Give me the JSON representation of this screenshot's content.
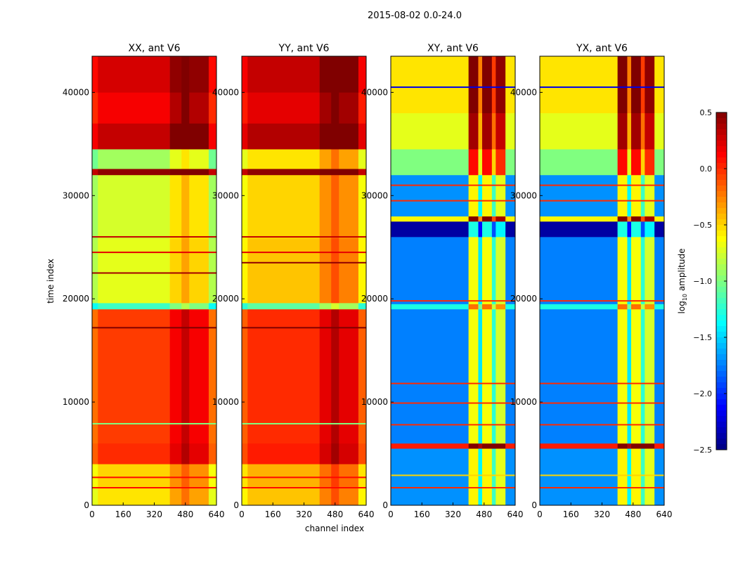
{
  "chart_data": {
    "type": "heatmap",
    "title": "2015-08-02 0.0-24.0",
    "xlabel": "channel index",
    "ylabel": "time index",
    "xlim": [
      0,
      640
    ],
    "ylim": [
      0,
      43500
    ],
    "xticks": [
      "0",
      "160",
      "320",
      "480",
      "640"
    ],
    "xtick_values": [
      0,
      160,
      320,
      480,
      640
    ],
    "yticks": [
      "0",
      "10000",
      "20000",
      "30000",
      "40000"
    ],
    "ytick_values": [
      0,
      10000,
      20000,
      30000,
      40000
    ],
    "colorbar": {
      "label_main": "log",
      "label_sub": "10",
      "label_rest": " amplitude",
      "range": [
        -2.5,
        0.5
      ],
      "ticks": [
        "0.5",
        "0.0",
        "−0.5",
        "−1.0",
        "−1.5",
        "−2.0",
        "−2.5"
      ],
      "tick_values": [
        0.5,
        0.0,
        -0.5,
        -1.0,
        -1.5,
        -2.0,
        -2.5
      ],
      "colormap": "jet"
    },
    "panels": [
      {
        "title": "XX, ant V6",
        "bands": [
          [
            0,
            1800,
            -0.55
          ],
          [
            1800,
            4000,
            -0.5
          ],
          [
            4000,
            6000,
            0.0
          ],
          [
            6000,
            19000,
            -0.05
          ],
          [
            19000,
            19600,
            -1.2
          ],
          [
            19600,
            25800,
            -0.7
          ],
          [
            25800,
            32000,
            -0.75
          ],
          [
            32000,
            32600,
            0.45
          ],
          [
            32600,
            34500,
            -0.9
          ],
          [
            34500,
            37000,
            0.3
          ],
          [
            37000,
            40000,
            0.15
          ],
          [
            40000,
            43500,
            0.25
          ]
        ],
        "channel_deltas": [
          [
            0,
            30,
            -0.15
          ],
          [
            30,
            400,
            0
          ],
          [
            400,
            460,
            0.2
          ],
          [
            460,
            500,
            0.35
          ],
          [
            500,
            600,
            0.2
          ],
          [
            600,
            640,
            -0.15
          ]
        ],
        "lines": [
          [
            1700,
            0.1
          ],
          [
            2700,
            0.1
          ],
          [
            7900,
            -1.0
          ],
          [
            17200,
            0.5
          ],
          [
            24500,
            0.2
          ],
          [
            26000,
            0.3
          ],
          [
            22500,
            0.4
          ]
        ]
      },
      {
        "title": "YY, ant V6",
        "bands": [
          [
            0,
            1800,
            -0.45
          ],
          [
            1800,
            4000,
            -0.4
          ],
          [
            4000,
            6000,
            0.05
          ],
          [
            6000,
            19000,
            0.0
          ],
          [
            19000,
            19600,
            -1.1
          ],
          [
            19600,
            25800,
            -0.45
          ],
          [
            25800,
            32000,
            -0.5
          ],
          [
            32000,
            32600,
            0.45
          ],
          [
            32600,
            34500,
            -0.55
          ],
          [
            34500,
            37000,
            0.35
          ],
          [
            37000,
            40000,
            0.2
          ],
          [
            40000,
            43500,
            0.3
          ]
        ],
        "channel_deltas": [
          [
            0,
            30,
            -0.15
          ],
          [
            30,
            400,
            0
          ],
          [
            400,
            460,
            0.2
          ],
          [
            460,
            500,
            0.35
          ],
          [
            500,
            600,
            0.2
          ],
          [
            600,
            640,
            -0.15
          ]
        ],
        "lines": [
          [
            1700,
            0.1
          ],
          [
            2700,
            0.1
          ],
          [
            7900,
            -1.0
          ],
          [
            17200,
            0.5
          ],
          [
            24500,
            0.2
          ],
          [
            26000,
            0.3
          ],
          [
            23500,
            0.45
          ]
        ]
      },
      {
        "title": "XY, ant V6",
        "bands": [
          [
            0,
            5500,
            -1.7
          ],
          [
            5500,
            6000,
            0.05
          ],
          [
            6000,
            19000,
            -1.75
          ],
          [
            19000,
            19500,
            -1.3
          ],
          [
            19500,
            26000,
            -1.75
          ],
          [
            26000,
            27500,
            -2.4
          ],
          [
            27500,
            28000,
            -0.6
          ],
          [
            28000,
            32000,
            -1.7
          ],
          [
            32000,
            34500,
            -1.0
          ],
          [
            34500,
            38000,
            -0.7
          ],
          [
            38000,
            43500,
            -0.55
          ]
        ],
        "channel_deltas": [
          [
            0,
            400,
            0
          ],
          [
            400,
            450,
            1.1
          ],
          [
            450,
            470,
            0.3
          ],
          [
            470,
            520,
            1.1
          ],
          [
            520,
            540,
            0.5
          ],
          [
            540,
            590,
            1.0
          ],
          [
            590,
            640,
            0
          ]
        ],
        "lines": [
          [
            1700,
            0.0
          ],
          [
            2900,
            -0.5
          ],
          [
            7800,
            0.0
          ],
          [
            9900,
            0.0
          ],
          [
            11800,
            0.0
          ],
          [
            19800,
            0.0
          ],
          [
            29500,
            0.0
          ],
          [
            31000,
            0.0
          ],
          [
            40500,
            -2.2
          ]
        ]
      },
      {
        "title": "YX, ant V6",
        "bands": [
          [
            0,
            5500,
            -1.7
          ],
          [
            5500,
            6000,
            0.05
          ],
          [
            6000,
            19000,
            -1.75
          ],
          [
            19000,
            19500,
            -1.3
          ],
          [
            19500,
            26000,
            -1.75
          ],
          [
            26000,
            27500,
            -2.4
          ],
          [
            27500,
            28000,
            -0.6
          ],
          [
            28000,
            32000,
            -1.7
          ],
          [
            32000,
            34500,
            -1.0
          ],
          [
            34500,
            38000,
            -0.7
          ],
          [
            38000,
            43500,
            -0.55
          ]
        ],
        "channel_deltas": [
          [
            0,
            400,
            0
          ],
          [
            400,
            450,
            1.1
          ],
          [
            450,
            470,
            0.3
          ],
          [
            470,
            520,
            1.1
          ],
          [
            520,
            540,
            0.5
          ],
          [
            540,
            590,
            1.0
          ],
          [
            590,
            640,
            0
          ]
        ],
        "lines": [
          [
            1700,
            0.0
          ],
          [
            2900,
            -0.5
          ],
          [
            7800,
            0.0
          ],
          [
            9900,
            0.0
          ],
          [
            11800,
            0.0
          ],
          [
            19800,
            0.0
          ],
          [
            29500,
            0.0
          ],
          [
            31000,
            0.0
          ],
          [
            40500,
            -2.2
          ]
        ]
      }
    ]
  }
}
